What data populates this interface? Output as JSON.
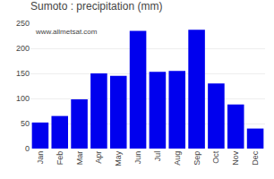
{
  "chart_data": {
    "type": "bar",
    "title": "Sumoto : precipitation (mm)",
    "categories": [
      "Jan",
      "Feb",
      "Mar",
      "Apr",
      "May",
      "Jun",
      "Jul",
      "Aug",
      "Sep",
      "Oct",
      "Nov",
      "Dec"
    ],
    "values": [
      52,
      65,
      98,
      150,
      145,
      235,
      153,
      155,
      237,
      130,
      88,
      40
    ],
    "color": "#0000ee",
    "ylim": [
      0,
      250
    ],
    "yticks": [
      0,
      50,
      100,
      150,
      200,
      250
    ],
    "grid": true,
    "annotations": [
      "www.allmetsat.com"
    ]
  }
}
